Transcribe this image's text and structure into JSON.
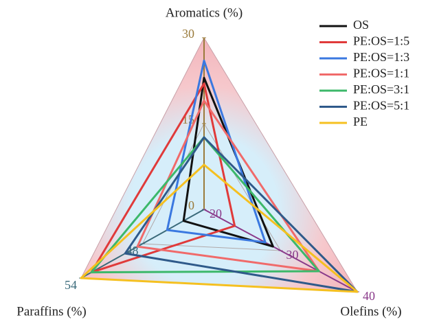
{
  "chart_data": {
    "type": "radar",
    "axes": [
      {
        "name": "Aromatics (%)",
        "lim": [
          0,
          30
        ],
        "ticks": [
          0,
          15,
          30
        ],
        "color": "#9a7a3a"
      },
      {
        "name": "Olefins (%)",
        "lim": [
          20,
          40
        ],
        "ticks": [
          20,
          30,
          40
        ],
        "color": "#8a3a8a"
      },
      {
        "name": "Paraffins (%)",
        "lim": [
          42,
          54
        ],
        "ticks": [
          48,
          54
        ],
        "color": "#3a6a7a"
      }
    ],
    "series": [
      {
        "name": "OS",
        "color": "#111111",
        "values": [
          23,
          29,
          44
        ]
      },
      {
        "name": "PE:OS=1:5",
        "color": "#e03a3a",
        "values": [
          22,
          24,
          53
        ]
      },
      {
        "name": "PE:OS=1:3",
        "color": "#3a78e0",
        "values": [
          26,
          28,
          45.6
        ]
      },
      {
        "name": "PE:OS=1:1",
        "color": "#f06a6a",
        "values": [
          19,
          35,
          48.5
        ]
      },
      {
        "name": "PE:OS=3:1",
        "color": "#3cb86a",
        "values": [
          12.6,
          35,
          53
        ]
      },
      {
        "name": "PE:OS=5:1",
        "color": "#2f5a8a",
        "values": [
          12.6,
          40,
          49.7
        ]
      },
      {
        "name": "PE",
        "color": "#f5c020",
        "values": [
          7.8,
          40,
          54
        ]
      }
    ]
  }
}
